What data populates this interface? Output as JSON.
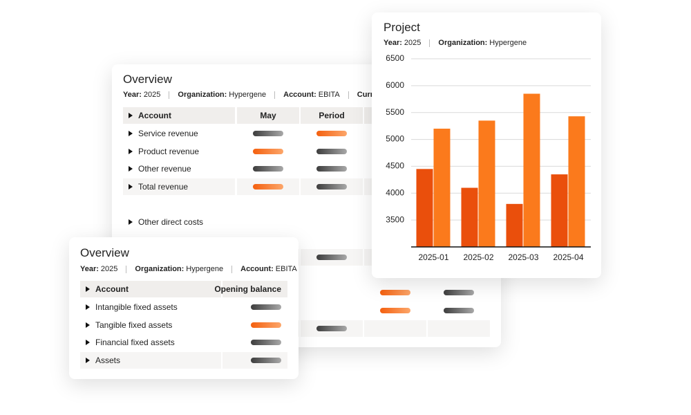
{
  "back_overview": {
    "title": "Overview",
    "meta": [
      {
        "key": "Year:",
        "value": "2025"
      },
      {
        "key": "Organization:",
        "value": "Hypergene"
      },
      {
        "key": "Account:",
        "value": "EBITA"
      },
      {
        "key": "Currency:"
      }
    ],
    "columns": [
      "Account",
      "May",
      "Period"
    ],
    "rows": [
      "Service revenue",
      "Product revenue",
      "Other revenue",
      "Total revenue",
      "Other direct costs"
    ]
  },
  "front_overview": {
    "title": "Overview",
    "meta": [
      {
        "key": "Year:",
        "value": "2025"
      },
      {
        "key": "Organization:",
        "value": "Hypergene"
      },
      {
        "key": "Account:",
        "value": "EBITA"
      }
    ],
    "columns": [
      "Account",
      "Opening balance"
    ],
    "rows": [
      "Intangible fixed assets",
      "Tangible fixed assets",
      "Financial fixed assets",
      "Assets"
    ]
  },
  "chart_data": {
    "type": "bar",
    "title": "Project",
    "meta": [
      {
        "key": "Year:",
        "value": "2025"
      },
      {
        "key": "Organization:",
        "value": "Hypergene"
      }
    ],
    "categories": [
      "2025-01",
      "2025-02",
      "2025-03",
      "2025-04"
    ],
    "series": [
      {
        "color": "#ea4f0c",
        "values": [
          4450,
          4100,
          3800,
          4350
        ]
      },
      {
        "color": "#fb7a1c",
        "values": [
          5200,
          5350,
          5850,
          5430
        ]
      }
    ],
    "ylim": [
      3000,
      6500
    ],
    "yticks": [
      3500,
      4000,
      4500,
      5000,
      5500,
      6000,
      6500
    ],
    "grid": true
  }
}
